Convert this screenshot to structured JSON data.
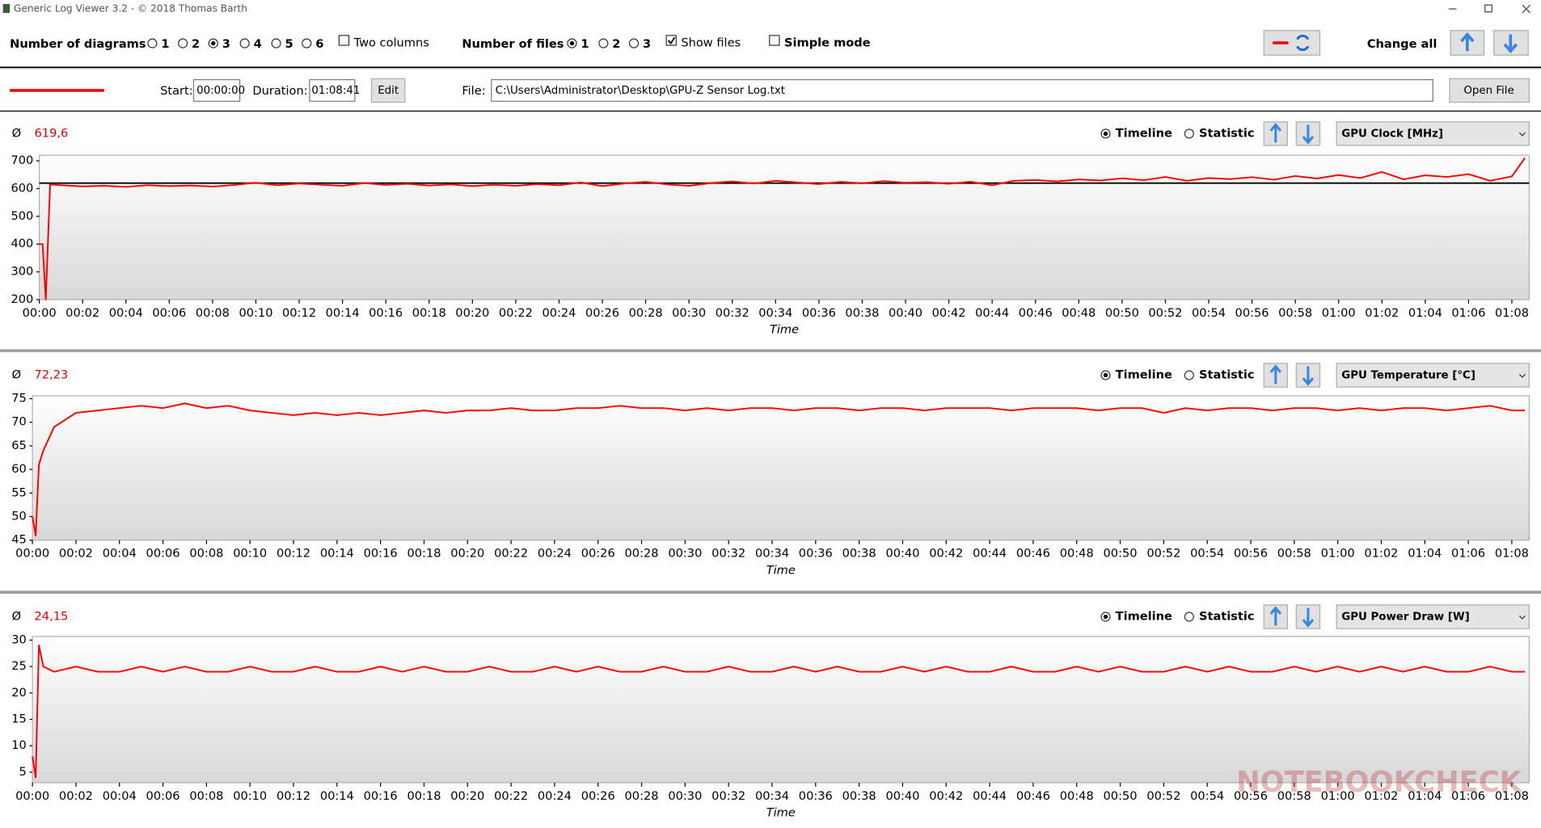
{
  "window": {
    "title": "Generic Log Viewer 3.2 - © 2018 Thomas Barth"
  },
  "toolbar": {
    "diagrams_label": "Number of diagrams",
    "diagram_options": [
      "1",
      "2",
      "3",
      "4",
      "5",
      "6"
    ],
    "diagrams_selected": 2,
    "two_columns": {
      "label": "Two columns",
      "checked": false
    },
    "files_label": "Number of files",
    "file_options": [
      "1",
      "2",
      "3"
    ],
    "files_selected": 0,
    "show_files": {
      "label": "Show files",
      "checked": true
    },
    "simple_mode": {
      "label": "Simple mode",
      "checked": false
    },
    "change_all": "Change all"
  },
  "file_row": {
    "start_label": "Start:",
    "start": "00:00:00",
    "duration_label": "Duration:",
    "duration": "01:08:41",
    "edit": "Edit",
    "file_label": "File:",
    "file": "C:\\Users\\Administrator\\Desktop\\GPU-Z Sensor Log.txt",
    "open_file": "Open File"
  },
  "watermark": "NOTEBOOKCHECK",
  "chart_data": [
    {
      "type": "line",
      "mean_symbol": "Ø",
      "mean": {
        "value": 619.6,
        "label": "619,6"
      },
      "mean_line": true,
      "modes": [
        "Timeline",
        "Statistic"
      ],
      "mode_selected": 0,
      "y_label": "GPU Clock [MHz]",
      "x_label": "Time",
      "color": "#ff0000",
      "x": [
        0,
        0.15,
        0.3,
        0.5,
        1,
        2,
        3,
        4,
        5,
        6,
        7,
        8,
        9,
        10,
        11,
        12,
        13,
        14,
        15,
        16,
        17,
        18,
        19,
        20,
        21,
        22,
        23,
        24,
        25,
        26,
        27,
        28,
        29,
        30,
        31,
        32,
        33,
        34,
        35,
        36,
        37,
        38,
        39,
        40,
        41,
        42,
        43,
        44,
        45,
        46,
        47,
        48,
        49,
        50,
        51,
        52,
        53,
        54,
        55,
        56,
        57,
        58,
        59,
        60,
        61,
        62,
        63,
        64,
        65,
        66,
        67,
        68,
        68.6
      ],
      "values": [
        400,
        400,
        200,
        615,
        612,
        608,
        610,
        606,
        612,
        609,
        611,
        607,
        613,
        621,
        612,
        618,
        614,
        610,
        620,
        613,
        617,
        611,
        615,
        609,
        614,
        610,
        616,
        612,
        622,
        609,
        618,
        624,
        615,
        610,
        620,
        626,
        618,
        628,
        622,
        616,
        624,
        619,
        627,
        621,
        623,
        617,
        625,
        612,
        628,
        631,
        626,
        633,
        629,
        637,
        630,
        642,
        628,
        638,
        634,
        641,
        632,
        645,
        636,
        649,
        638,
        660,
        633,
        648,
        642,
        652,
        628,
        644,
        710
      ],
      "xlim": [
        0,
        68.8
      ],
      "ylim": [
        200,
        720
      ],
      "yticks": [
        200,
        300,
        400,
        500,
        600,
        700
      ],
      "xticks": [
        {
          "value": 0,
          "label": "00:00"
        },
        {
          "value": 2,
          "label": "00:02"
        },
        {
          "value": 4,
          "label": "00:04"
        },
        {
          "value": 6,
          "label": "00:06"
        },
        {
          "value": 8,
          "label": "00:08"
        },
        {
          "value": 10,
          "label": "00:10"
        },
        {
          "value": 12,
          "label": "00:12"
        },
        {
          "value": 14,
          "label": "00:14"
        },
        {
          "value": 16,
          "label": "00:16"
        },
        {
          "value": 18,
          "label": "00:18"
        },
        {
          "value": 20,
          "label": "00:20"
        },
        {
          "value": 22,
          "label": "00:22"
        },
        {
          "value": 24,
          "label": "00:24"
        },
        {
          "value": 26,
          "label": "00:26"
        },
        {
          "value": 28,
          "label": "00:28"
        },
        {
          "value": 30,
          "label": "00:30"
        },
        {
          "value": 32,
          "label": "00:32"
        },
        {
          "value": 34,
          "label": "00:34"
        },
        {
          "value": 36,
          "label": "00:36"
        },
        {
          "value": 38,
          "label": "00:38"
        },
        {
          "value": 40,
          "label": "00:40"
        },
        {
          "value": 42,
          "label": "00:42"
        },
        {
          "value": 44,
          "label": "00:44"
        },
        {
          "value": 46,
          "label": "00:46"
        },
        {
          "value": 48,
          "label": "00:48"
        },
        {
          "value": 50,
          "label": "00:50"
        },
        {
          "value": 52,
          "label": "00:52"
        },
        {
          "value": 54,
          "label": "00:54"
        },
        {
          "value": 56,
          "label": "00:56"
        },
        {
          "value": 58,
          "label": "00:58"
        },
        {
          "value": 60,
          "label": "01:00"
        },
        {
          "value": 62,
          "label": "01:02"
        },
        {
          "value": 64,
          "label": "01:04"
        },
        {
          "value": 66,
          "label": "01:06"
        },
        {
          "value": 68,
          "label": "01:08"
        }
      ]
    },
    {
      "type": "line",
      "mean_symbol": "Ø",
      "mean": {
        "value": 72.23,
        "label": "72,23"
      },
      "mean_line": false,
      "modes": [
        "Timeline",
        "Statistic"
      ],
      "mode_selected": 0,
      "y_label": "GPU Temperature [°C]",
      "x_label": "Time",
      "color": "#ff0000",
      "x": [
        0,
        0.15,
        0.3,
        0.5,
        1,
        2,
        3,
        4,
        5,
        6,
        7,
        8,
        9,
        10,
        11,
        12,
        13,
        14,
        15,
        16,
        17,
        18,
        19,
        20,
        21,
        22,
        23,
        24,
        25,
        26,
        27,
        28,
        29,
        30,
        31,
        32,
        33,
        34,
        35,
        36,
        37,
        38,
        39,
        40,
        41,
        42,
        43,
        44,
        45,
        46,
        47,
        48,
        49,
        50,
        51,
        52,
        53,
        54,
        55,
        56,
        57,
        58,
        59,
        60,
        61,
        62,
        63,
        64,
        65,
        66,
        67,
        68,
        68.6
      ],
      "values": [
        50,
        46,
        61,
        64,
        69,
        72,
        72.5,
        73,
        73.5,
        73,
        74,
        73,
        73.5,
        72.5,
        72,
        71.5,
        72,
        71.5,
        72,
        71.5,
        72,
        72.5,
        72,
        72.5,
        72.5,
        73,
        72.5,
        72.5,
        73,
        73,
        73.5,
        73,
        73,
        72.5,
        73,
        72.5,
        73,
        73,
        72.5,
        73,
        73,
        72.5,
        73,
        73,
        72.5,
        73,
        73,
        73,
        72.5,
        73,
        73,
        73,
        72.5,
        73,
        73,
        72,
        73,
        72.5,
        73,
        73,
        72.5,
        73,
        73,
        72.5,
        73,
        72.5,
        73,
        73,
        72.5,
        73,
        73.5,
        72.5,
        72.5
      ],
      "xlim": [
        0,
        68.8
      ],
      "ylim": [
        45,
        75.6
      ],
      "yticks": [
        45,
        50,
        55,
        60,
        65,
        70,
        75
      ],
      "xticks": [
        {
          "value": 0,
          "label": "00:00"
        },
        {
          "value": 2,
          "label": "00:02"
        },
        {
          "value": 4,
          "label": "00:04"
        },
        {
          "value": 6,
          "label": "00:06"
        },
        {
          "value": 8,
          "label": "00:08"
        },
        {
          "value": 10,
          "label": "00:10"
        },
        {
          "value": 12,
          "label": "00:12"
        },
        {
          "value": 14,
          "label": "00:14"
        },
        {
          "value": 16,
          "label": "00:16"
        },
        {
          "value": 18,
          "label": "00:18"
        },
        {
          "value": 20,
          "label": "00:20"
        },
        {
          "value": 22,
          "label": "00:22"
        },
        {
          "value": 24,
          "label": "00:24"
        },
        {
          "value": 26,
          "label": "00:26"
        },
        {
          "value": 28,
          "label": "00:28"
        },
        {
          "value": 30,
          "label": "00:30"
        },
        {
          "value": 32,
          "label": "00:32"
        },
        {
          "value": 34,
          "label": "00:34"
        },
        {
          "value": 36,
          "label": "00:36"
        },
        {
          "value": 38,
          "label": "00:38"
        },
        {
          "value": 40,
          "label": "00:40"
        },
        {
          "value": 42,
          "label": "00:42"
        },
        {
          "value": 44,
          "label": "00:44"
        },
        {
          "value": 46,
          "label": "00:46"
        },
        {
          "value": 48,
          "label": "00:48"
        },
        {
          "value": 50,
          "label": "00:50"
        },
        {
          "value": 52,
          "label": "00:52"
        },
        {
          "value": 54,
          "label": "00:54"
        },
        {
          "value": 56,
          "label": "00:56"
        },
        {
          "value": 58,
          "label": "00:58"
        },
        {
          "value": 60,
          "label": "01:00"
        },
        {
          "value": 62,
          "label": "01:02"
        },
        {
          "value": 64,
          "label": "01:04"
        },
        {
          "value": 66,
          "label": "01:06"
        },
        {
          "value": 68,
          "label": "01:08"
        }
      ]
    },
    {
      "type": "line",
      "mean_symbol": "Ø",
      "mean": {
        "value": 24.15,
        "label": "24,15"
      },
      "mean_line": false,
      "modes": [
        "Timeline",
        "Statistic"
      ],
      "mode_selected": 0,
      "y_label": "GPU Power Draw [W]",
      "x_label": "Time",
      "color": "#ff0000",
      "x": [
        0,
        0.15,
        0.3,
        0.5,
        1,
        2,
        3,
        4,
        5,
        6,
        7,
        8,
        9,
        10,
        11,
        12,
        13,
        14,
        15,
        16,
        17,
        18,
        19,
        20,
        21,
        22,
        23,
        24,
        25,
        26,
        27,
        28,
        29,
        30,
        31,
        32,
        33,
        34,
        35,
        36,
        37,
        38,
        39,
        40,
        41,
        42,
        43,
        44,
        45,
        46,
        47,
        48,
        49,
        50,
        51,
        52,
        53,
        54,
        55,
        56,
        57,
        58,
        59,
        60,
        61,
        62,
        63,
        64,
        65,
        66,
        67,
        68,
        68.6
      ],
      "values": [
        8,
        4,
        29,
        25,
        24,
        25,
        24,
        24,
        25,
        24,
        25,
        24,
        24,
        25,
        24,
        24,
        25,
        24,
        24,
        25,
        24,
        25,
        24,
        24,
        25,
        24,
        24,
        25,
        24,
        25,
        24,
        24,
        25,
        24,
        24,
        25,
        24,
        24,
        25,
        24,
        25,
        24,
        24,
        25,
        24,
        25,
        24,
        24,
        25,
        24,
        24,
        25,
        24,
        25,
        24,
        24,
        25,
        24,
        25,
        24,
        24,
        25,
        24,
        25,
        24,
        25,
        24,
        25,
        24,
        24,
        25,
        24,
        24
      ],
      "xlim": [
        0,
        68.8
      ],
      "ylim": [
        3,
        30.7
      ],
      "yticks": [
        5,
        10,
        15,
        20,
        25,
        30
      ],
      "xticks": [
        {
          "value": 0,
          "label": "00:00"
        },
        {
          "value": 2,
          "label": "00:02"
        },
        {
          "value": 4,
          "label": "00:04"
        },
        {
          "value": 6,
          "label": "00:06"
        },
        {
          "value": 8,
          "label": "00:08"
        },
        {
          "value": 10,
          "label": "00:10"
        },
        {
          "value": 12,
          "label": "00:12"
        },
        {
          "value": 14,
          "label": "00:14"
        },
        {
          "value": 16,
          "label": "00:16"
        },
        {
          "value": 18,
          "label": "00:18"
        },
        {
          "value": 20,
          "label": "00:20"
        },
        {
          "value": 22,
          "label": "00:22"
        },
        {
          "value": 24,
          "label": "00:24"
        },
        {
          "value": 26,
          "label": "00:26"
        },
        {
          "value": 28,
          "label": "00:28"
        },
        {
          "value": 30,
          "label": "00:30"
        },
        {
          "value": 32,
          "label": "00:32"
        },
        {
          "value": 34,
          "label": "00:34"
        },
        {
          "value": 36,
          "label": "00:36"
        },
        {
          "value": 38,
          "label": "00:38"
        },
        {
          "value": 40,
          "label": "00:40"
        },
        {
          "value": 42,
          "label": "00:42"
        },
        {
          "value": 44,
          "label": "00:44"
        },
        {
          "value": 46,
          "label": "00:46"
        },
        {
          "value": 48,
          "label": "00:48"
        },
        {
          "value": 50,
          "label": "00:50"
        },
        {
          "value": 52,
          "label": "00:52"
        },
        {
          "value": 54,
          "label": "00:54"
        },
        {
          "value": 56,
          "label": "00:56"
        },
        {
          "value": 58,
          "label": "00:58"
        },
        {
          "value": 60,
          "label": "01:00"
        },
        {
          "value": 62,
          "label": "01:02"
        },
        {
          "value": 64,
          "label": "01:04"
        },
        {
          "value": 66,
          "label": "01:06"
        },
        {
          "value": 68,
          "label": "01:08"
        }
      ]
    }
  ]
}
